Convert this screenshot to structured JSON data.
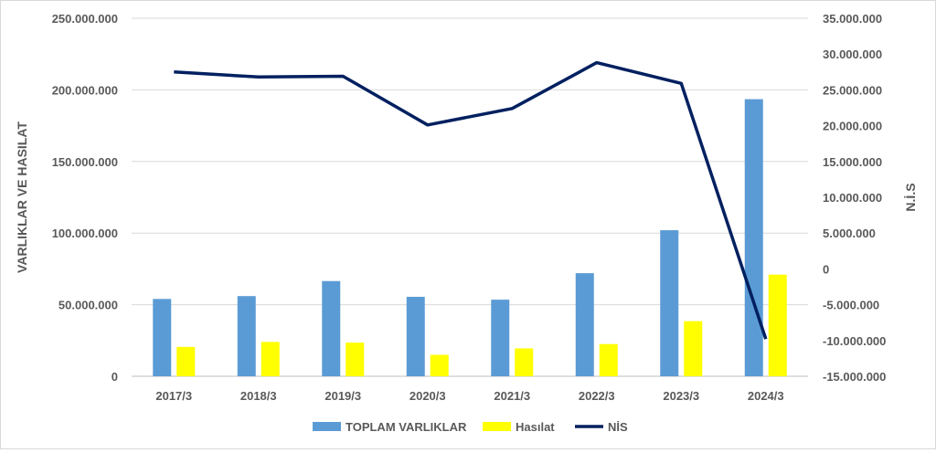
{
  "chart_data": {
    "type": "bar",
    "categories": [
      "2017/3",
      "2018/3",
      "2019/3",
      "2020/3",
      "2021/3",
      "2022/3",
      "2023/3",
      "2024/3"
    ],
    "series": [
      {
        "name": "TOPLAM VARLIKLAR",
        "type": "bar",
        "axis": "left",
        "color": "#5b9bd5",
        "values": [
          54000000,
          56000000,
          66500000,
          55500000,
          53500000,
          72000000,
          102000000,
          193500000
        ]
      },
      {
        "name": "Hasılat",
        "type": "bar",
        "axis": "left",
        "color": "#ffff00",
        "values": [
          20500000,
          24000000,
          23500000,
          15000000,
          19500000,
          22500000,
          38500000,
          71000000
        ]
      },
      {
        "name": "NİS",
        "type": "line",
        "axis": "right",
        "color": "#002060",
        "values": [
          27500000,
          26800000,
          26900000,
          20100000,
          22400000,
          28800000,
          25900000,
          -9800000
        ]
      }
    ],
    "ylabel": "VARLIKLAR VE HASILAT",
    "y2label": "N.İ.S",
    "ylim": [
      0,
      250000000
    ],
    "y2lim": [
      -15000000,
      35000000
    ],
    "yticks": [
      "0",
      "50.000.000",
      "100.000.000",
      "150.000.000",
      "200.000.000",
      "250.000.000"
    ],
    "y2ticks": [
      "-15.000.000",
      "-10.000.000",
      "-5.000.000",
      "0",
      "5.000.000",
      "10.000.000",
      "15.000.000",
      "20.000.000",
      "25.000.000",
      "30.000.000",
      "35.000.000"
    ],
    "grid": true,
    "legend": "bottom"
  }
}
